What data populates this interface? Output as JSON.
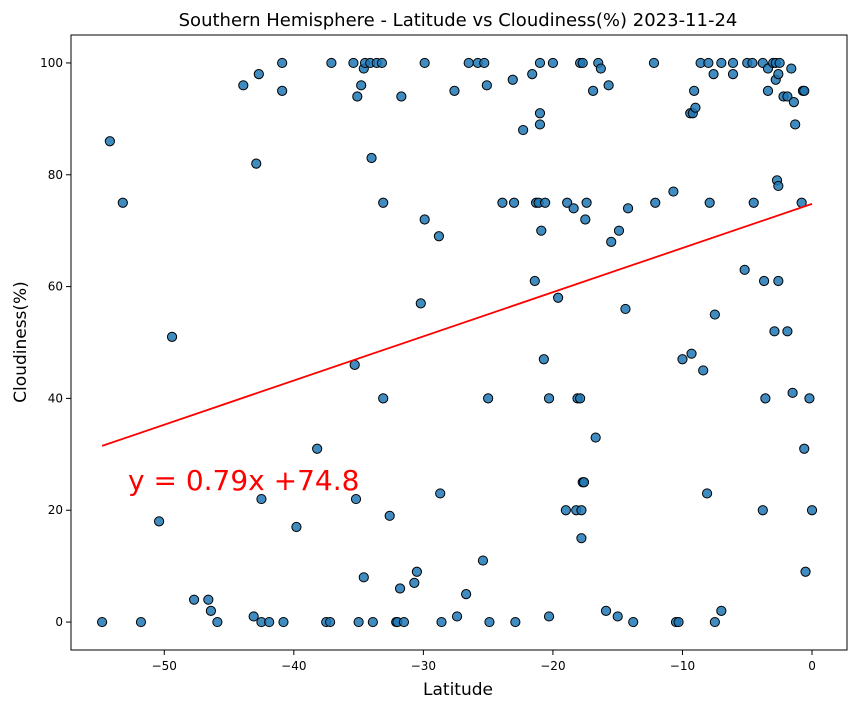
{
  "chart_data": {
    "type": "scatter",
    "title": "Southern Hemisphere - Latitude vs Cloudiness(%) 2023-11-24",
    "xlabel": "Latitude",
    "ylabel": "Cloudiness(%)",
    "xlim": [
      -57.2,
      2.7
    ],
    "ylim": [
      -5,
      105
    ],
    "xticks": [
      -50,
      -40,
      -30,
      -20,
      -10,
      0
    ],
    "yticks": [
      0,
      20,
      40,
      60,
      80,
      100
    ],
    "grid": false,
    "point_color": "#1f77b4",
    "line_color": "#ff0000",
    "equation": "y = 0.79x +74.8",
    "regression": {
      "slope": 0.79,
      "intercept": 74.8,
      "x_range": [
        -54.8,
        0
      ]
    },
    "points": [
      [
        -54.8,
        0
      ],
      [
        -54.2,
        86
      ],
      [
        -53.2,
        75
      ],
      [
        -51.8,
        0
      ],
      [
        -50.4,
        18
      ],
      [
        -49.4,
        51
      ],
      [
        -47.7,
        4
      ],
      [
        -46.6,
        4
      ],
      [
        -46.4,
        2
      ],
      [
        -45.9,
        0
      ],
      [
        -43.9,
        96
      ],
      [
        -43.1,
        1
      ],
      [
        -42.9,
        82
      ],
      [
        -42.7,
        98
      ],
      [
        -42.5,
        0
      ],
      [
        -42.5,
        22
      ],
      [
        -41.9,
        0
      ],
      [
        -40.9,
        100
      ],
      [
        -40.9,
        95
      ],
      [
        -40.8,
        0
      ],
      [
        -39.8,
        17
      ],
      [
        -38.2,
        31
      ],
      [
        -37.5,
        0
      ],
      [
        -37.2,
        0
      ],
      [
        -37.1,
        100
      ],
      [
        -35.4,
        100
      ],
      [
        -35.3,
        46
      ],
      [
        -35.2,
        22
      ],
      [
        -35.1,
        94
      ],
      [
        -35.0,
        0
      ],
      [
        -34.8,
        96
      ],
      [
        -34.6,
        99
      ],
      [
        -34.6,
        8
      ],
      [
        -34.5,
        100
      ],
      [
        -34.1,
        100
      ],
      [
        -34.0,
        83
      ],
      [
        -33.9,
        0
      ],
      [
        -33.6,
        100
      ],
      [
        -33.2,
        100
      ],
      [
        -33.1,
        75
      ],
      [
        -33.1,
        40
      ],
      [
        -32.6,
        19
      ],
      [
        -32.1,
        0
      ],
      [
        -32.0,
        0
      ],
      [
        -31.8,
        6
      ],
      [
        -31.7,
        94
      ],
      [
        -31.5,
        0
      ],
      [
        -30.7,
        7
      ],
      [
        -30.5,
        9
      ],
      [
        -30.2,
        57
      ],
      [
        -29.9,
        100
      ],
      [
        -29.9,
        72
      ],
      [
        -28.8,
        69
      ],
      [
        -28.7,
        23
      ],
      [
        -28.6,
        0
      ],
      [
        -27.6,
        95
      ],
      [
        -27.4,
        1
      ],
      [
        -26.7,
        5
      ],
      [
        -26.5,
        100
      ],
      [
        -25.8,
        100
      ],
      [
        -25.4,
        11
      ],
      [
        -25.3,
        100
      ],
      [
        -25.1,
        96
      ],
      [
        -25.0,
        40
      ],
      [
        -24.9,
        0
      ],
      [
        -23.9,
        75
      ],
      [
        -23.1,
        97
      ],
      [
        -23.0,
        75
      ],
      [
        -22.9,
        0
      ],
      [
        -22.3,
        88
      ],
      [
        -21.6,
        98
      ],
      [
        -21.4,
        61
      ],
      [
        -21.3,
        75
      ],
      [
        -21.1,
        75
      ],
      [
        -21.0,
        89
      ],
      [
        -21.0,
        91
      ],
      [
        -21.0,
        100
      ],
      [
        -20.9,
        70
      ],
      [
        -20.7,
        47
      ],
      [
        -20.6,
        75
      ],
      [
        -20.3,
        40
      ],
      [
        -20.3,
        1
      ],
      [
        -20.0,
        100
      ],
      [
        -19.6,
        58
      ],
      [
        -19.0,
        20
      ],
      [
        -18.9,
        75
      ],
      [
        -18.4,
        74
      ],
      [
        -18.2,
        20
      ],
      [
        -18.1,
        40
      ],
      [
        -17.9,
        40
      ],
      [
        -17.9,
        100
      ],
      [
        -17.8,
        15
      ],
      [
        -17.8,
        20
      ],
      [
        -17.7,
        100
      ],
      [
        -17.7,
        25
      ],
      [
        -17.6,
        25
      ],
      [
        -17.5,
        72
      ],
      [
        -17.4,
        75
      ],
      [
        -16.9,
        95
      ],
      [
        -16.7,
        33
      ],
      [
        -16.5,
        100
      ],
      [
        -16.3,
        99
      ],
      [
        -15.9,
        2
      ],
      [
        -15.7,
        96
      ],
      [
        -15.5,
        68
      ],
      [
        -15.0,
        1
      ],
      [
        -14.9,
        70
      ],
      [
        -14.4,
        56
      ],
      [
        -14.2,
        74
      ],
      [
        -13.8,
        0
      ],
      [
        -12.2,
        100
      ],
      [
        -12.1,
        75
      ],
      [
        -10.7,
        77
      ],
      [
        -10.5,
        0
      ],
      [
        -10.3,
        0
      ],
      [
        -10.0,
        47
      ],
      [
        -9.4,
        91
      ],
      [
        -9.3,
        48
      ],
      [
        -9.2,
        91
      ],
      [
        -9.1,
        95
      ],
      [
        -9.0,
        92
      ],
      [
        -8.6,
        100
      ],
      [
        -8.4,
        45
      ],
      [
        -8.1,
        23
      ],
      [
        -8.0,
        100
      ],
      [
        -7.9,
        75
      ],
      [
        -7.6,
        98
      ],
      [
        -7.5,
        55
      ],
      [
        -7.5,
        0
      ],
      [
        -7.0,
        100
      ],
      [
        -7.0,
        2
      ],
      [
        -6.1,
        100
      ],
      [
        -6.1,
        98
      ],
      [
        -5.2,
        63
      ],
      [
        -5.0,
        100
      ],
      [
        -4.6,
        100
      ],
      [
        -4.5,
        75
      ],
      [
        -3.8,
        20
      ],
      [
        -3.8,
        100
      ],
      [
        -3.7,
        61
      ],
      [
        -3.6,
        40
      ],
      [
        -3.4,
        95
      ],
      [
        -3.4,
        99
      ],
      [
        -3.0,
        100
      ],
      [
        -2.9,
        52
      ],
      [
        -2.8,
        100
      ],
      [
        -2.8,
        97
      ],
      [
        -2.7,
        79
      ],
      [
        -2.6,
        78
      ],
      [
        -2.6,
        61
      ],
      [
        -2.6,
        98
      ],
      [
        -2.5,
        100
      ],
      [
        -2.2,
        94
      ],
      [
        -1.9,
        94
      ],
      [
        -1.9,
        52
      ],
      [
        -1.6,
        99
      ],
      [
        -1.5,
        41
      ],
      [
        -1.4,
        93
      ],
      [
        -1.3,
        89
      ],
      [
        -0.8,
        75
      ],
      [
        -0.7,
        95
      ],
      [
        -0.6,
        95
      ],
      [
        -0.6,
        31
      ],
      [
        -0.5,
        9
      ],
      [
        -0.2,
        40
      ],
      [
        0.0,
        20
      ]
    ]
  }
}
